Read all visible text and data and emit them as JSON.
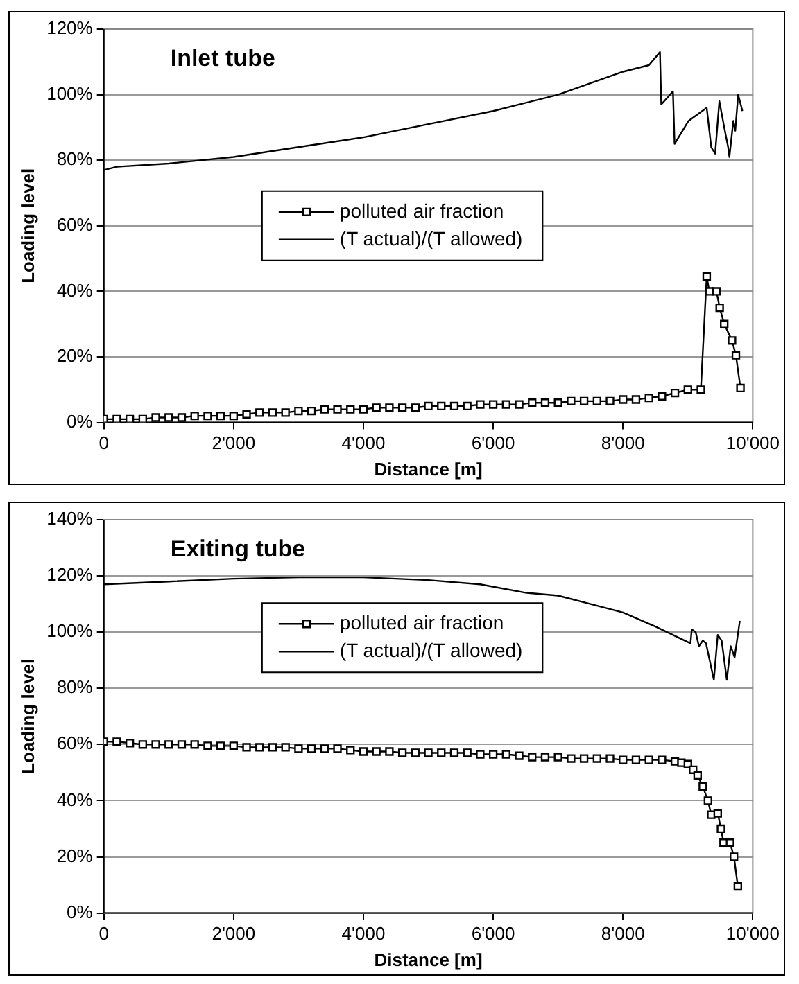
{
  "chart_data": [
    {
      "type": "line",
      "title": "Inlet tube",
      "xlabel": "Distance [m]",
      "ylabel": "Loading level",
      "xlim": [
        0,
        10000
      ],
      "xticks": [
        0,
        {
          "value": 2000,
          "label": "2'000"
        },
        {
          "value": 4000,
          "label": "4'000"
        },
        {
          "value": 6000,
          "label": "6'000"
        },
        {
          "value": 8000,
          "label": "8'000"
        },
        {
          "value": 10000,
          "label": "10'000"
        }
      ],
      "ylim": [
        0,
        120
      ],
      "yticks": [
        {
          "value": 0,
          "label": "0%"
        },
        {
          "value": 20,
          "label": "20%"
        },
        {
          "value": 40,
          "label": "40%"
        },
        {
          "value": 60,
          "label": "60%"
        },
        {
          "value": 80,
          "label": "80%"
        },
        {
          "value": 100,
          "label": "100%"
        },
        {
          "value": 120,
          "label": "120%"
        }
      ],
      "grid": "y",
      "legend": "center",
      "series": [
        {
          "name": "polluted air fraction",
          "color": "#000000",
          "marker": "square",
          "x": [
            0,
            200,
            400,
            600,
            800,
            1000,
            1200,
            1400,
            1600,
            1800,
            2000,
            2200,
            2400,
            2600,
            2800,
            3000,
            3200,
            3400,
            3600,
            3800,
            4000,
            4200,
            4400,
            4600,
            4800,
            5000,
            5200,
            5400,
            5600,
            5800,
            6000,
            6200,
            6400,
            6600,
            6800,
            7000,
            7200,
            7400,
            7600,
            7800,
            8000,
            8200,
            8400,
            8600,
            8800,
            9000,
            9200,
            9290,
            9330,
            9440,
            9490,
            9560,
            9680,
            9740,
            9810
          ],
          "values": [
            1,
            1,
            1,
            1,
            1.5,
            1.5,
            1.5,
            2,
            2,
            2,
            2,
            2.5,
            3,
            3,
            3,
            3.5,
            3.5,
            4,
            4,
            4,
            4,
            4.5,
            4.5,
            4.5,
            4.5,
            5,
            5,
            5,
            5,
            5.5,
            5.5,
            5.5,
            5.5,
            6,
            6,
            6,
            6.5,
            6.5,
            6.5,
            6.5,
            7,
            7,
            7.5,
            8,
            9,
            10,
            10,
            44.5,
            40,
            40,
            35,
            30,
            25,
            20.5,
            10.5
          ]
        },
        {
          "name": "(T actual)/(T allowed)",
          "color": "#000000",
          "marker": "none",
          "x": [
            0,
            200,
            1000,
            2000,
            3000,
            4000,
            5000,
            6000,
            7000,
            8000,
            8400,
            8570,
            8590,
            8770,
            8795,
            9010,
            9290,
            9360,
            9420,
            9485,
            9560,
            9620,
            9640,
            9700,
            9730,
            9775,
            9840
          ],
          "values": [
            77,
            78,
            79,
            81,
            84,
            87,
            91,
            95,
            100,
            107,
            109,
            113,
            97,
            101,
            85,
            92,
            96,
            84,
            82,
            98,
            90,
            84,
            81,
            92,
            89,
            100,
            95
          ]
        }
      ]
    },
    {
      "type": "line",
      "title": "Exiting tube",
      "xlabel": "Distance [m]",
      "ylabel": "Loading level",
      "xlim": [
        0,
        10000
      ],
      "xticks": [
        0,
        {
          "value": 2000,
          "label": "2'000"
        },
        {
          "value": 4000,
          "label": "4'000"
        },
        {
          "value": 6000,
          "label": "6'000"
        },
        {
          "value": 8000,
          "label": "8'000"
        },
        {
          "value": 10000,
          "label": "10'000"
        }
      ],
      "ylim": [
        0,
        140
      ],
      "yticks": [
        {
          "value": 0,
          "label": "0%"
        },
        {
          "value": 20,
          "label": "20%"
        },
        {
          "value": 40,
          "label": "40%"
        },
        {
          "value": 60,
          "label": "60%"
        },
        {
          "value": 80,
          "label": "80%"
        },
        {
          "value": 100,
          "label": "100%"
        },
        {
          "value": 120,
          "label": "120%"
        },
        {
          "value": 140,
          "label": "140%"
        }
      ],
      "grid": "y",
      "legend": "top",
      "series": [
        {
          "name": "polluted air fraction",
          "color": "#000000",
          "marker": "square",
          "x": [
            0,
            200,
            400,
            600,
            800,
            1000,
            1200,
            1400,
            1600,
            1800,
            2000,
            2200,
            2400,
            2600,
            2800,
            3000,
            3200,
            3400,
            3600,
            3800,
            4000,
            4200,
            4400,
            4600,
            4800,
            5000,
            5200,
            5400,
            5600,
            5800,
            6000,
            6200,
            6400,
            6600,
            6800,
            7000,
            7200,
            7400,
            7600,
            7800,
            8000,
            8200,
            8400,
            8600,
            8800,
            8900,
            9000,
            9080,
            9150,
            9230,
            9310,
            9360,
            9460,
            9510,
            9550,
            9650,
            9710,
            9770
          ],
          "values": [
            61,
            61,
            60.5,
            60,
            60,
            60,
            60,
            60,
            59.5,
            59.5,
            59.5,
            59,
            59,
            59,
            59,
            58.5,
            58.5,
            58.5,
            58.5,
            58,
            57.5,
            57.5,
            57.5,
            57,
            57,
            57,
            57,
            57,
            57,
            56.5,
            56.5,
            56.5,
            56,
            55.5,
            55.5,
            55.5,
            55,
            55,
            55,
            55,
            54.5,
            54.5,
            54.5,
            54.5,
            54,
            53.5,
            53,
            51,
            49,
            45,
            40,
            35,
            35.5,
            30,
            25,
            25,
            20,
            9.5
          ]
        },
        {
          "name": "(T actual)/(T allowed)",
          "color": "#000000",
          "marker": "none",
          "x": [
            0,
            500,
            1000,
            2000,
            3000,
            4000,
            5000,
            5800,
            6500,
            7000,
            7500,
            8000,
            8500,
            9040,
            9060,
            9120,
            9170,
            9230,
            9280,
            9400,
            9460,
            9520,
            9600,
            9660,
            9720,
            9800
          ],
          "values": [
            117,
            117.5,
            118,
            119,
            119.5,
            119.5,
            118.5,
            117,
            114,
            113,
            110,
            107,
            102,
            96,
            101,
            100,
            95,
            97,
            96,
            83,
            99,
            97,
            83,
            95,
            91,
            104
          ]
        }
      ]
    }
  ]
}
